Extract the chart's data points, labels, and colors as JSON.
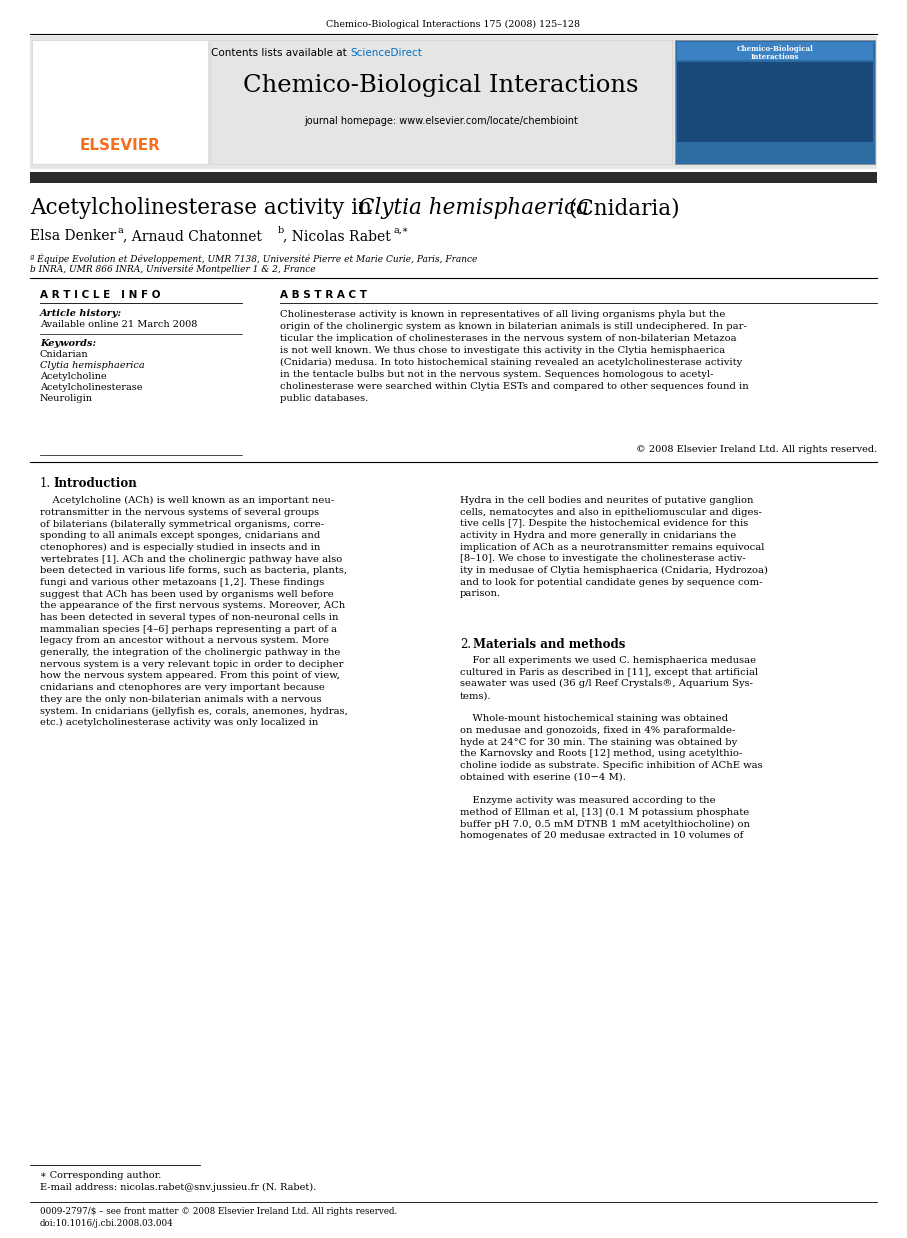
{
  "page_width": 9.07,
  "page_height": 12.38,
  "bg_color": "#ffffff",
  "top_journal_line": "Chemico-Biological Interactions 175 (2008) 125–128",
  "journal_name": "Chemico-Biological Interactions",
  "contents_text": "Contents lists available at ",
  "sciencedirect_text": "ScienceDirect",
  "sciencedirect_color": "#0070c0",
  "journal_homepage": "journal homepage: www.elsevier.com/locate/chembioint",
  "header_bg": "#e5e5e5",
  "dark_bar_color": "#2b2b2b",
  "article_title_normal": "Acetylcholinesterase activity in ",
  "article_title_italic": "Clytia hemisphaerica",
  "article_title_end": " (Cnidaria)",
  "affil_a": "ª Équipe Evolution et Développement, UMR 7138, Université Pierre et Marie Curie, Paris, France",
  "affil_b": "b INRA, UMR 866 INRA, Université Montpellier 1 & 2, France",
  "article_info_header": "A R T I C L E   I N F O",
  "abstract_header": "A B S T R A C T",
  "keywords": [
    "Cnidarian",
    "Clytia hemisphaerica",
    "Acetylcholine",
    "Acetylcholinesterase",
    "Neuroligin"
  ],
  "abstract_text": "Cholinesterase activity is known in representatives of all living organisms phyla but the origin of the cholinergic system as known in bilaterian animals is still undeciphered. In particular the implication of cholinesterases in the nervous system of non-bilaterian Metazoa is not well known. We thus chose to investigate this activity in the Clytia hemisphaerica (Cnidaria) medusa. In toto histochemical staining revealed an acetylcholinesterase activity in the tentacle bulbs but not in the nervous system. Sequences homologous to acetylcholinesterase were searched within Clytia ESTs and compared to other sequences found in public databases.",
  "copyright_text": "© 2008 Elsevier Ireland Ltd. All rights reserved.",
  "footnote_star": "∗ Corresponding author.",
  "footnote_email": "E-mail address: nicolas.rabet@snv.jussieu.fr (N. Rabet).",
  "footer_issn": "0009-2797/$ – see front matter © 2008 Elsevier Ireland Ltd. All rights reserved.",
  "footer_doi": "doi:10.1016/j.cbi.2008.03.004",
  "elsevier_orange": "#f37021",
  "blue_link_color": "#0070c0"
}
